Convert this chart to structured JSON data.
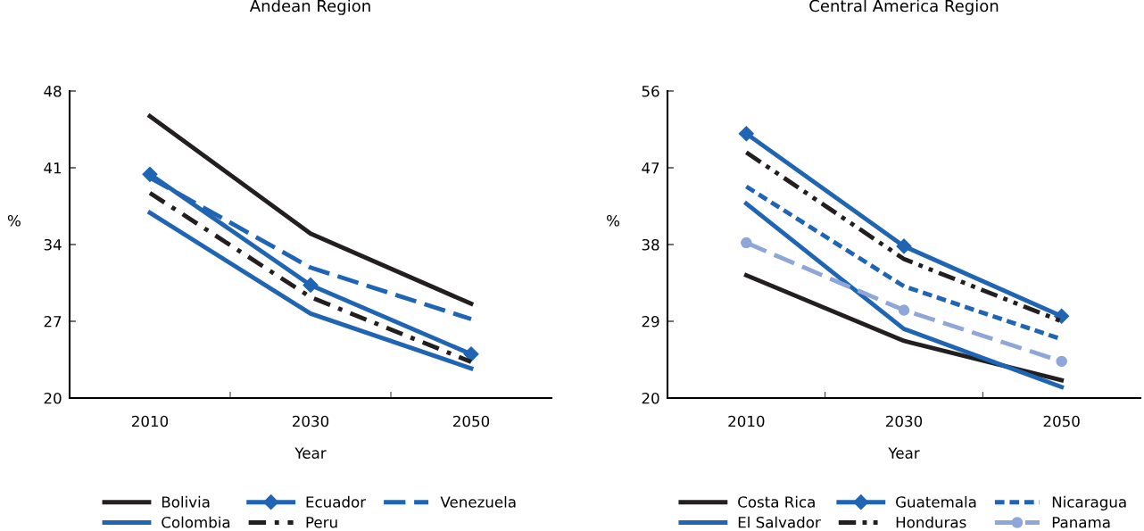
{
  "chart_data": [
    {
      "type": "line",
      "title": "Andean Region",
      "xlabel": "Year",
      "ylabel": "%",
      "categories": [
        "2010",
        "2030",
        "2050"
      ],
      "ylim": [
        20,
        48
      ],
      "yticks": [
        20,
        27,
        34,
        41,
        48
      ],
      "legend": "bottom",
      "grid": false,
      "series": [
        {
          "name": "Bolivia",
          "color": "#231f20",
          "line_style": "solid",
          "values": [
            45.7,
            35.0,
            28.6
          ]
        },
        {
          "name": "Colombia",
          "color": "#1f65b4",
          "line_style": "solid",
          "values": [
            36.9,
            27.7,
            22.7
          ]
        },
        {
          "name": "Ecuador",
          "color": "#1f65b4",
          "line_style": "solid",
          "marker": "diamond",
          "values": [
            40.4,
            30.3,
            24.0
          ]
        },
        {
          "name": "Peru",
          "color": "#231f20",
          "line_style": "dashdot",
          "values": [
            38.7,
            29.2,
            23.3
          ]
        },
        {
          "name": "Venezuela",
          "color": "#1f65b4",
          "line_style": "dashed",
          "values": [
            40.1,
            31.9,
            27.2
          ]
        }
      ]
    },
    {
      "type": "line",
      "title": "Central America Region",
      "xlabel": "Year",
      "ylabel": "%",
      "categories": [
        "2010",
        "2030",
        "2050"
      ],
      "ylim": [
        20,
        56
      ],
      "yticks": [
        20,
        29,
        38,
        47,
        56
      ],
      "legend": "bottom",
      "grid": false,
      "series": [
        {
          "name": "Costa Rica",
          "color": "#231f20",
          "line_style": "solid",
          "values": [
            34.4,
            26.7,
            22.1
          ]
        },
        {
          "name": "El Salvador",
          "color": "#1f65b4",
          "line_style": "solid",
          "values": [
            42.8,
            28.1,
            21.3
          ]
        },
        {
          "name": "Guatemala",
          "color": "#1f65b4",
          "line_style": "solid",
          "marker": "diamond",
          "values": [
            51.0,
            37.8,
            29.6
          ]
        },
        {
          "name": "Honduras",
          "color": "#231f20",
          "line_style": "dashdotdot",
          "values": [
            48.8,
            36.3,
            29.0
          ]
        },
        {
          "name": "Nicaragua",
          "color": "#1f65b4",
          "line_style": "dotted",
          "values": [
            44.8,
            33.1,
            26.9
          ]
        },
        {
          "name": "Panama",
          "color": "#8fa6d9",
          "line_style": "dashed",
          "marker": "circle",
          "values": [
            38.2,
            30.3,
            24.3
          ]
        }
      ]
    }
  ]
}
